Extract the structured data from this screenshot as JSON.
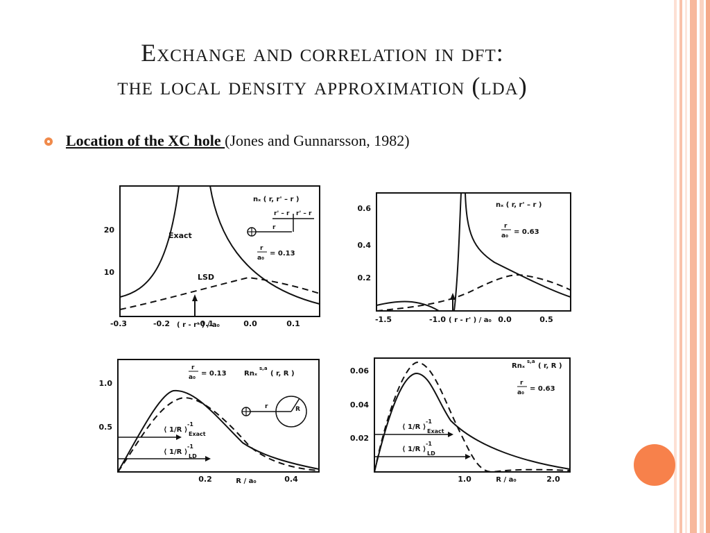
{
  "slide": {
    "title_line1": "Exchange and correlation in dft:",
    "title_line2": "the local density approximation (lda)",
    "bullet_strong": "Location of the XC hole ",
    "bullet_rest": "(Jones and Gunnarsson, 1982)"
  },
  "colors": {
    "accent": "#f08a4b",
    "circle": "#f7814b",
    "stripe": "#f7b89c"
  },
  "panels": {
    "tl": {
      "ticks_x": [
        "-0.3",
        "-0.2",
        "-0.1",
        "0.0",
        "0.1"
      ],
      "ticks_y": [
        "20",
        "10"
      ],
      "xlabel": "( r - r' ) / a₀",
      "ylabel_fn": "nₓ ( r, r' – r )",
      "label_exact": "Exact",
      "label_lsd": "LSD",
      "inset_left": "r' – r",
      "inset_right": "r' – r",
      "inset_r": "r",
      "ratio_num": "r",
      "ratio_den": "a₀",
      "ratio_val": "= 0.13"
    },
    "tr": {
      "ticks_x": [
        "-1.5",
        "-1.0",
        "-0.5",
        "0.0",
        "0.5"
      ],
      "ticks_y": [
        "0.6",
        "0.4",
        "0.2"
      ],
      "xlabel": "( r - r' ) / a₀",
      "ylabel_fn": "nₓ ( r, r' – r )",
      "ratio_num": "r",
      "ratio_den": "a₀",
      "ratio_val": "= 0.63"
    },
    "bl": {
      "ticks_x": [
        "0.2",
        "0.4"
      ],
      "ticks_y": [
        "1.0",
        "0.5"
      ],
      "xlabel": "R / a₀",
      "ratio_num": "r",
      "ratio_den": "a₀",
      "ratio_val": "= 0.13",
      "fn_label": "Rnₓ",
      "fn_sup": "s,a",
      "fn_args": "( r, R )",
      "avg_exact": "⟨ 1/R ⟩",
      "avg_exact_sup": "-1",
      "avg_exact_sub": "Exact",
      "avg_ld": "⟨ 1/R ⟩",
      "avg_ld_sup": "-1",
      "avg_ld_sub": "LD",
      "inset_r": "r",
      "inset_R": "R"
    },
    "br": {
      "ticks_x": [
        "1.0",
        "2.0"
      ],
      "ticks_y": [
        "0.06",
        "0.04",
        "0.02"
      ],
      "xlabel": "R / a₀",
      "ratio_num": "r",
      "ratio_den": "a₀",
      "ratio_val": "= 0.63",
      "fn_label": "Rnₓ",
      "fn_sup": "s,a",
      "fn_args": "( r, R )",
      "avg_exact": "⟨ 1/R ⟩",
      "avg_exact_sup": "-1",
      "avg_exact_sub": "Exact",
      "avg_ld": "⟨ 1/R ⟩",
      "avg_ld_sup": "-1",
      "avg_ld_sub": "LD"
    }
  }
}
